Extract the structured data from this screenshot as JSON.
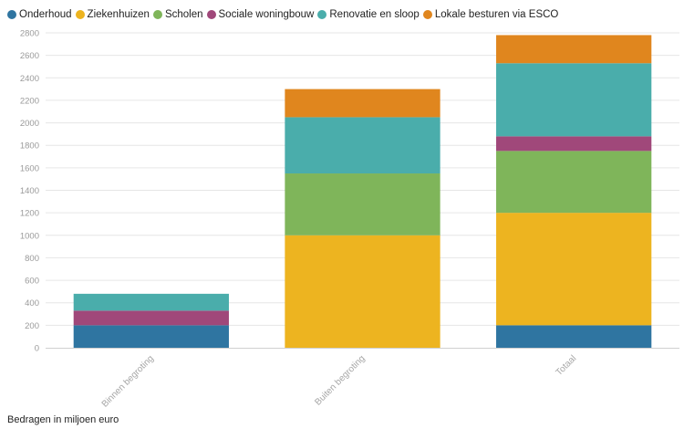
{
  "footnote": "Bedragen in miljoen euro",
  "chart_data": {
    "type": "bar",
    "stacked": true,
    "categories": [
      "Binnen begroting",
      "Buiten begroting",
      "Totaal"
    ],
    "ylim": [
      0,
      2800
    ],
    "yticks": [
      0,
      200,
      400,
      600,
      800,
      1000,
      1200,
      1400,
      1600,
      1800,
      2000,
      2200,
      2400,
      2600,
      2800
    ],
    "grid": true,
    "legend_position": "top-left",
    "series": [
      {
        "name": "Onderhoud",
        "color": "#2f75a1",
        "values": [
          200,
          0,
          200
        ]
      },
      {
        "name": "Ziekenhuizen",
        "color": "#edb420",
        "values": [
          0,
          1000,
          1000
        ]
      },
      {
        "name": "Scholen",
        "color": "#7fb55a",
        "values": [
          0,
          550,
          550
        ]
      },
      {
        "name": "Sociale woningbouw",
        "color": "#a0487a",
        "values": [
          130,
          0,
          130
        ]
      },
      {
        "name": "Renovatie en sloop",
        "color": "#4aadab",
        "values": [
          150,
          500,
          650
        ]
      },
      {
        "name": "Lokale besturen via ESCO",
        "color": "#e0861e",
        "values": [
          0,
          250,
          250
        ]
      }
    ]
  }
}
